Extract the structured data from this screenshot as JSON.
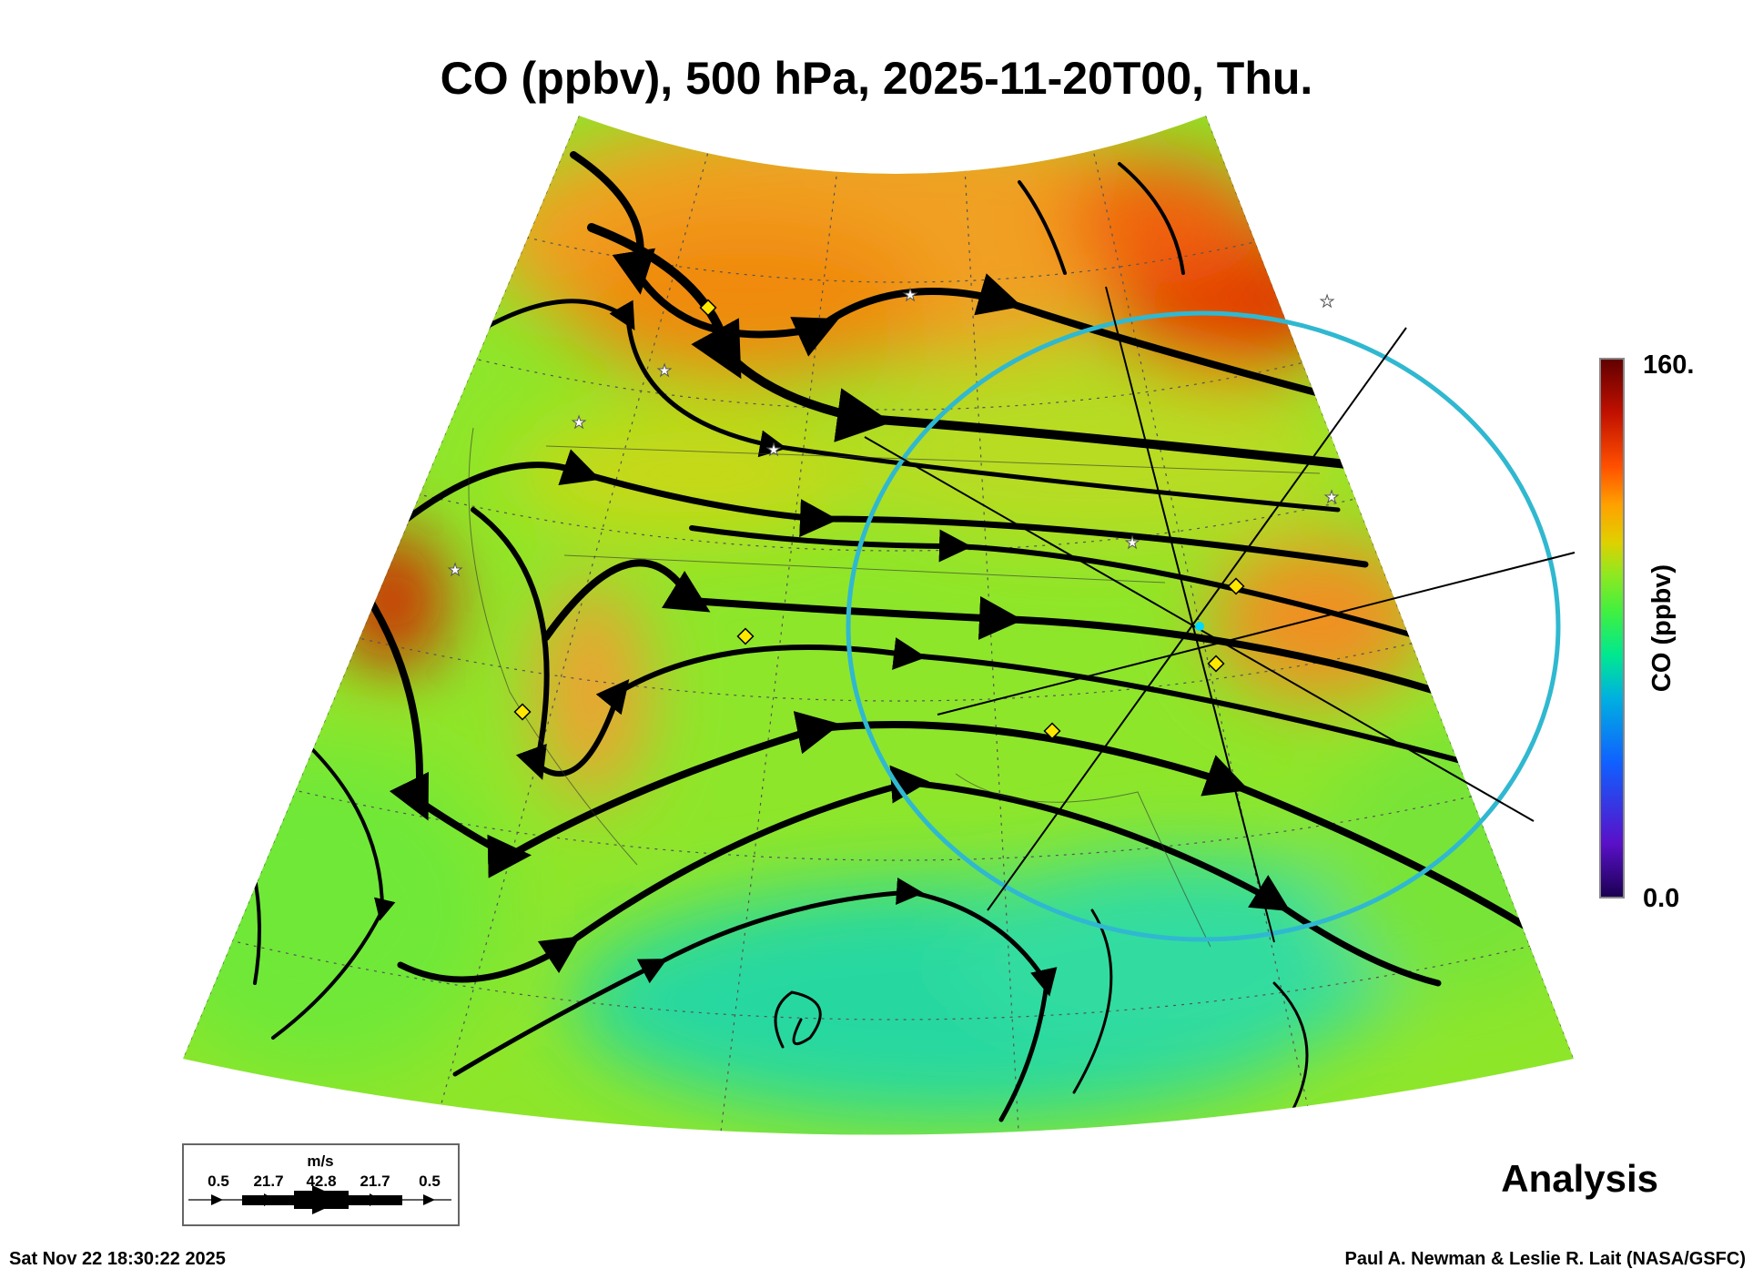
{
  "chart_data": {
    "type": "heatmap",
    "title": "CO (ppbv), 500 hPa, 2025-11-20T00, Thu.",
    "variable": "CO (ppbv)",
    "level": "500 hPa",
    "colorbar": {
      "label": "CO (ppbv)",
      "min_label": "0.0",
      "max_label": "160.",
      "range": [
        0,
        160
      ],
      "colors": [
        "#1a0050",
        "#5a10c8",
        "#1060ff",
        "#00b0e0",
        "#00e890",
        "#40f040",
        "#90e820",
        "#e0d000",
        "#ffa000",
        "#ff5000",
        "#c01000",
        "#600000"
      ]
    },
    "wind_legend": {
      "units": "m/s",
      "labels": [
        "0.5",
        "21.7",
        "42.8",
        "21.7",
        "0.5"
      ]
    },
    "overlay": "streamlines of 500 hPa wind over CO field, North America",
    "status": "Analysis"
  },
  "footer": {
    "timestamp": "Sat Nov 22 18:30:22 2025",
    "credit": "Paul A. Newman & Leslie R. Lait (NASA/GSFC)"
  }
}
